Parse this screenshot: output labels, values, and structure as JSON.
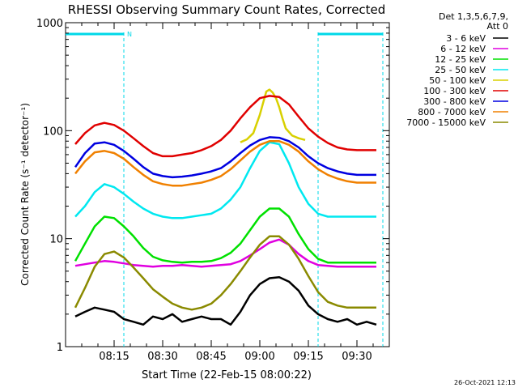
{
  "chart_data": {
    "type": "line",
    "title": "RHESSI Observing Summary Count Rates, Corrected",
    "xlabel": "Start Time (22-Feb-15 08:00:22)",
    "ylabel": "Corrected Count Rate (s⁻¹ detector⁻¹)",
    "y_scale": "log",
    "ylim": [
      1,
      1000
    ],
    "y_ticks": [
      1,
      10,
      100,
      1000
    ],
    "y_tick_labels": [
      "1",
      "10",
      "100",
      "1000"
    ],
    "x_ticks": [
      "08:15",
      "08:30",
      "08:45",
      "09:00",
      "09:15",
      "09:30"
    ],
    "x_tick_minutes": [
      15,
      30,
      45,
      60,
      75,
      90
    ],
    "xlim_minutes": [
      0,
      100
    ],
    "legend_header": [
      "Det 1,3,5,6,7,9,",
      "Att 0"
    ],
    "legend_placement": "right",
    "grid": false,
    "timestamp": "26-Oct-2021 12:13",
    "night_intervals": [
      [
        0,
        18
      ],
      [
        78,
        98
      ]
    ],
    "saa_flag_label": "N",
    "colors": {
      "background": "#ffffff",
      "axes": "#000000",
      "night": "#00d8e8"
    },
    "series": [
      {
        "name": "3 - 6 keV",
        "color": "#000000",
        "x": [
          3,
          6,
          9,
          12,
          15,
          18,
          21,
          24,
          27,
          30,
          33,
          36,
          39,
          42,
          45,
          48,
          51,
          54,
          57,
          60,
          63,
          66,
          69,
          72,
          75,
          78,
          81,
          84,
          87,
          90,
          93,
          96
        ],
        "y": [
          1.9,
          2.1,
          2.3,
          2.2,
          2.1,
          1.8,
          1.7,
          1.6,
          1.9,
          1.8,
          2.0,
          1.7,
          1.8,
          1.9,
          1.8,
          1.8,
          1.6,
          2.1,
          3.0,
          3.8,
          4.3,
          4.4,
          4.0,
          3.3,
          2.4,
          2.0,
          1.8,
          1.7,
          1.8,
          1.6,
          1.7,
          1.6
        ]
      },
      {
        "name": "6 - 12 keV",
        "color": "#e000e0",
        "x": [
          3,
          6,
          9,
          12,
          15,
          18,
          21,
          24,
          27,
          30,
          33,
          36,
          39,
          42,
          45,
          48,
          51,
          54,
          57,
          60,
          63,
          66,
          69,
          72,
          75,
          78,
          81,
          84,
          87,
          90,
          93,
          96
        ],
        "y": [
          5.6,
          5.8,
          6.0,
          6.2,
          6.1,
          5.9,
          5.7,
          5.6,
          5.5,
          5.6,
          5.6,
          5.7,
          5.6,
          5.5,
          5.6,
          5.7,
          5.8,
          6.2,
          7.0,
          8.0,
          9.2,
          9.8,
          8.8,
          7.2,
          6.2,
          5.7,
          5.6,
          5.5,
          5.5,
          5.5,
          5.5,
          5.5
        ]
      },
      {
        "name": "12 - 25 keV",
        "color": "#00e000",
        "x": [
          3,
          6,
          9,
          12,
          15,
          18,
          21,
          24,
          27,
          30,
          33,
          36,
          39,
          42,
          45,
          48,
          51,
          54,
          57,
          60,
          63,
          66,
          69,
          72,
          75,
          78,
          81,
          84,
          87,
          90,
          93,
          96
        ],
        "y": [
          6.2,
          9.0,
          13.0,
          16.0,
          15.5,
          13.0,
          10.5,
          8.2,
          6.8,
          6.3,
          6.1,
          6.0,
          6.1,
          6.1,
          6.2,
          6.6,
          7.4,
          9.0,
          12.0,
          16.0,
          19.0,
          19.0,
          16.0,
          11.0,
          8.0,
          6.5,
          6.0,
          6.0,
          6.0,
          6.0,
          6.0,
          6.0
        ]
      },
      {
        "name": "25 - 50 keV",
        "color": "#00e8f0",
        "x": [
          3,
          6,
          9,
          12,
          15,
          18,
          21,
          24,
          27,
          30,
          33,
          36,
          39,
          42,
          45,
          48,
          51,
          54,
          57,
          60,
          63,
          66,
          69,
          72,
          75,
          78,
          81,
          84,
          87,
          90,
          93,
          96
        ],
        "y": [
          16,
          20,
          27,
          32,
          30,
          26,
          22,
          19,
          17,
          16,
          15.5,
          15.5,
          16,
          16.5,
          17,
          19,
          23,
          30,
          45,
          65,
          78,
          75,
          50,
          30,
          21,
          17,
          16,
          16,
          16,
          16,
          16,
          16
        ]
      },
      {
        "name": "50 - 100 keV",
        "color": "#d8d000",
        "x": [
          54,
          56,
          58,
          60,
          61,
          62,
          63,
          64,
          65,
          66,
          67,
          68,
          70,
          72,
          74
        ],
        "y": [
          78,
          83,
          95,
          140,
          180,
          230,
          240,
          225,
          200,
          165,
          130,
          105,
          90,
          85,
          82
        ]
      },
      {
        "name": "100 - 300 keV",
        "color": "#e00000",
        "x": [
          3,
          6,
          9,
          12,
          15,
          18,
          21,
          24,
          27,
          30,
          33,
          36,
          39,
          42,
          45,
          48,
          51,
          54,
          57,
          60,
          63,
          66,
          69,
          72,
          75,
          78,
          81,
          84,
          87,
          90,
          93,
          96
        ],
        "y": [
          75,
          95,
          112,
          118,
          113,
          100,
          85,
          72,
          62,
          58,
          58,
          60,
          62,
          66,
          72,
          82,
          100,
          130,
          165,
          200,
          210,
          205,
          175,
          135,
          105,
          88,
          77,
          70,
          67,
          66,
          66,
          66
        ]
      },
      {
        "name": "300 - 800 keV",
        "color": "#0000e0",
        "x": [
          3,
          6,
          9,
          12,
          15,
          18,
          21,
          24,
          27,
          30,
          33,
          36,
          39,
          42,
          45,
          48,
          51,
          54,
          57,
          60,
          63,
          66,
          69,
          72,
          75,
          78,
          81,
          84,
          87,
          90,
          93,
          96
        ],
        "y": [
          46,
          62,
          76,
          78,
          74,
          65,
          55,
          46,
          40,
          38,
          37,
          37.5,
          38.5,
          40,
          42,
          45,
          52,
          62,
          73,
          82,
          87,
          86,
          80,
          70,
          58,
          50,
          45,
          42,
          40,
          39,
          39,
          39
        ]
      },
      {
        "name": "800 - 7000 keV",
        "color": "#f08000",
        "x": [
          3,
          6,
          9,
          12,
          15,
          18,
          21,
          24,
          27,
          30,
          33,
          36,
          39,
          42,
          45,
          48,
          51,
          54,
          57,
          60,
          63,
          66,
          69,
          72,
          75,
          78,
          81,
          84,
          87,
          90,
          93,
          96
        ],
        "y": [
          40,
          52,
          63,
          65,
          62,
          55,
          46,
          39,
          34,
          32,
          31,
          31,
          32,
          33,
          35,
          38,
          44,
          53,
          64,
          74,
          80,
          80,
          74,
          64,
          52,
          44,
          39,
          36,
          34,
          33,
          33,
          33
        ]
      },
      {
        "name": "7000 - 15000 keV",
        "color": "#8a8a00",
        "x": [
          3,
          6,
          9,
          12,
          15,
          18,
          21,
          24,
          27,
          30,
          33,
          36,
          39,
          42,
          45,
          48,
          51,
          54,
          57,
          60,
          63,
          66,
          69,
          72,
          75,
          78,
          81,
          84,
          87,
          90,
          93,
          96
        ],
        "y": [
          2.3,
          3.5,
          5.5,
          7.2,
          7.6,
          6.7,
          5.4,
          4.3,
          3.4,
          2.9,
          2.5,
          2.3,
          2.2,
          2.3,
          2.5,
          3.0,
          3.8,
          5.0,
          6.7,
          8.8,
          10.5,
          10.5,
          8.8,
          6.5,
          4.5,
          3.2,
          2.6,
          2.4,
          2.3,
          2.3,
          2.3,
          2.3
        ]
      }
    ]
  }
}
